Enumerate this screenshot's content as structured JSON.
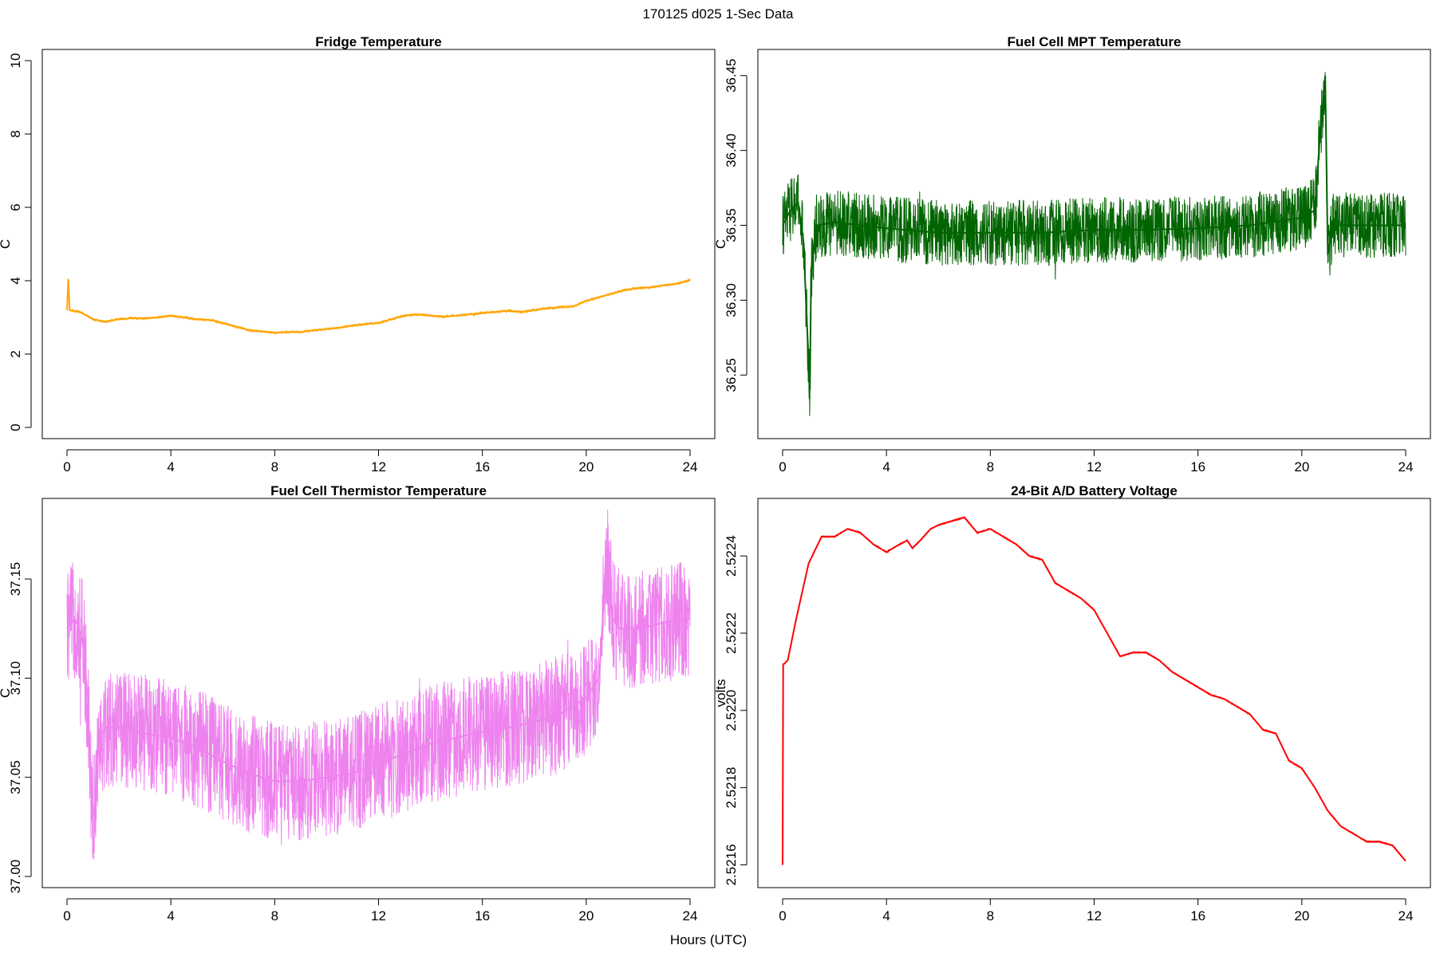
{
  "figure": {
    "title": "170125   d025   1-Sec Data",
    "xlabel": "Hours (UTC)"
  },
  "chart_data": [
    {
      "type": "line",
      "title": "Fridge Temperature",
      "xlabel": "",
      "ylabel": "C",
      "color": "#ffa500",
      "noise": 0.03,
      "xlim": [
        0,
        24
      ],
      "ylim": [
        0,
        10
      ],
      "xticks": [
        0,
        4,
        8,
        12,
        16,
        20,
        24
      ],
      "yticks": [
        "0",
        "2",
        "4",
        "6",
        "8",
        "10"
      ],
      "x": [
        0,
        0.05,
        0.1,
        0.5,
        1.0,
        1.5,
        2.0,
        2.5,
        3.0,
        3.5,
        4.0,
        4.5,
        5.0,
        5.5,
        6.0,
        6.5,
        7.0,
        7.5,
        8.0,
        8.5,
        9.0,
        9.5,
        10.0,
        10.5,
        11.0,
        11.5,
        12.0,
        12.5,
        13.0,
        13.5,
        14.0,
        14.5,
        15.0,
        15.5,
        16.0,
        16.5,
        17.0,
        17.5,
        18.0,
        18.5,
        19.0,
        19.5,
        20.0,
        20.5,
        21.0,
        21.5,
        22.0,
        22.5,
        23.0,
        23.5,
        24.0
      ],
      "y": [
        3.2,
        4.05,
        3.2,
        3.15,
        2.95,
        2.88,
        2.95,
        2.98,
        2.97,
        3.0,
        3.05,
        3.0,
        2.95,
        2.93,
        2.85,
        2.75,
        2.65,
        2.62,
        2.58,
        2.6,
        2.6,
        2.65,
        2.68,
        2.72,
        2.78,
        2.82,
        2.85,
        2.95,
        3.05,
        3.08,
        3.05,
        3.02,
        3.05,
        3.08,
        3.12,
        3.15,
        3.18,
        3.15,
        3.2,
        3.25,
        3.28,
        3.3,
        3.45,
        3.55,
        3.65,
        3.75,
        3.8,
        3.82,
        3.88,
        3.92,
        4.02
      ]
    },
    {
      "type": "line",
      "title": "Fuel Cell MPT Temperature",
      "xlabel": "",
      "ylabel": "C",
      "color": "#006400",
      "noise": 0.022,
      "xlim": [
        0,
        24
      ],
      "ylim": [
        36.215,
        36.46
      ],
      "xticks": [
        0,
        4,
        8,
        12,
        16,
        20,
        24
      ],
      "yticks": [
        "36.25",
        "36.30",
        "36.35",
        "36.40",
        "36.45"
      ],
      "x": [
        0,
        0.3,
        0.6,
        0.8,
        0.9,
        1.0,
        1.05,
        1.1,
        1.3,
        2,
        4,
        6,
        8,
        10,
        12,
        14,
        16,
        18,
        20,
        20.5,
        20.7,
        20.9,
        21.0,
        21.2,
        22,
        24
      ],
      "y": [
        36.35,
        36.36,
        36.365,
        36.34,
        36.3,
        36.26,
        36.24,
        36.32,
        36.35,
        36.352,
        36.348,
        36.345,
        36.345,
        36.345,
        36.347,
        36.347,
        36.348,
        36.35,
        36.355,
        36.36,
        36.41,
        36.45,
        36.33,
        36.35,
        36.35,
        36.35
      ]
    },
    {
      "type": "line",
      "title": "Fuel Cell Thermistor Temperature",
      "xlabel": "",
      "ylabel": "C",
      "color": "#ee82ee",
      "noise": 0.03,
      "xlim": [
        0,
        24
      ],
      "ylim": [
        37.0,
        37.185
      ],
      "xticks": [
        0,
        4,
        8,
        12,
        16,
        20,
        24
      ],
      "yticks": [
        "37.00",
        "37.05",
        "37.10",
        "37.15"
      ],
      "x": [
        0,
        0.3,
        0.6,
        0.8,
        0.95,
        1.05,
        1.2,
        1.5,
        2,
        3,
        4,
        5,
        6,
        7,
        8,
        9,
        10,
        11,
        12,
        13,
        14,
        15,
        16,
        17,
        18,
        19,
        20,
        20.5,
        20.8,
        21.0,
        21.3,
        22,
        23,
        24
      ],
      "y": [
        37.125,
        37.13,
        37.12,
        37.09,
        37.04,
        37.03,
        37.07,
        37.075,
        37.075,
        37.072,
        37.07,
        37.065,
        37.058,
        37.052,
        37.048,
        37.048,
        37.05,
        37.052,
        37.057,
        37.062,
        37.067,
        37.07,
        37.073,
        37.075,
        37.078,
        37.082,
        37.09,
        37.1,
        37.165,
        37.13,
        37.125,
        37.125,
        37.128,
        37.13
      ]
    },
    {
      "type": "line",
      "title": "24-Bit A/D Battery Voltage",
      "xlabel": "",
      "ylabel": "volts",
      "color": "#ff0000",
      "noise": 1.5e-06,
      "xlim": [
        0,
        24
      ],
      "ylim": [
        2.52157,
        2.52252
      ],
      "xticks": [
        0,
        4,
        8,
        12,
        16,
        20,
        24
      ],
      "yticks": [
        "2.5216",
        "2.5218",
        "2.5220",
        "2.5222",
        "2.5224"
      ],
      "x": [
        0,
        0.02,
        0.05,
        0.2,
        0.5,
        1.0,
        1.5,
        2.0,
        2.5,
        3.0,
        3.5,
        4.0,
        4.5,
        4.8,
        5.0,
        5.3,
        5.7,
        6.0,
        6.5,
        7.0,
        7.5,
        8.0,
        8.5,
        9.0,
        9.5,
        10.0,
        10.5,
        11.0,
        11.5,
        12.0,
        12.5,
        13.0,
        13.5,
        14.0,
        14.5,
        15.0,
        15.5,
        16.0,
        16.5,
        17.0,
        17.5,
        18.0,
        18.5,
        19.0,
        19.5,
        20.0,
        20.5,
        21.0,
        21.5,
        22.0,
        22.5,
        23.0,
        23.5,
        24.0
      ],
      "y": [
        2.5216,
        2.52212,
        2.52212,
        2.52213,
        2.52223,
        2.52238,
        2.52245,
        2.52245,
        2.52247,
        2.52246,
        2.52243,
        2.52241,
        2.52243,
        2.52244,
        2.52242,
        2.52244,
        2.52247,
        2.52248,
        2.52249,
        2.5225,
        2.52246,
        2.52247,
        2.52245,
        2.52243,
        2.5224,
        2.52239,
        2.52233,
        2.52231,
        2.52229,
        2.52226,
        2.5222,
        2.52214,
        2.52215,
        2.52215,
        2.52213,
        2.5221,
        2.52208,
        2.52206,
        2.52204,
        2.52203,
        2.52201,
        2.52199,
        2.52195,
        2.52194,
        2.52187,
        2.52185,
        2.5218,
        2.52174,
        2.5217,
        2.52168,
        2.52166,
        2.52166,
        2.52165,
        2.52161
      ]
    }
  ]
}
